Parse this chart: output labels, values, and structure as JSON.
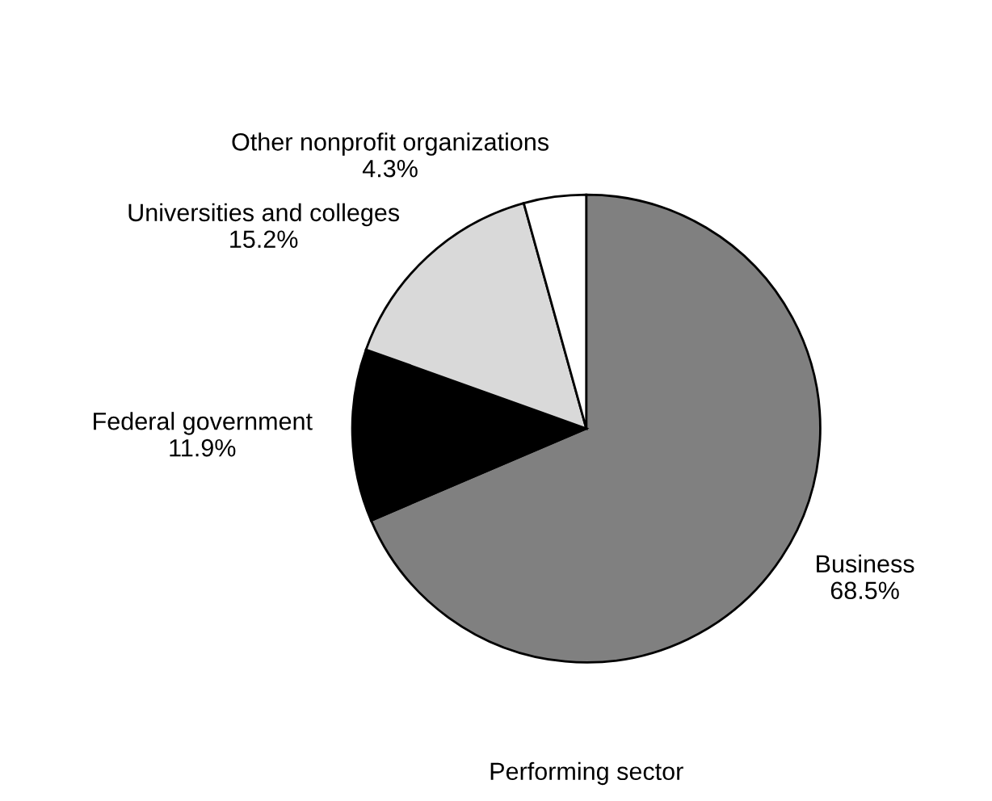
{
  "chart_data": {
    "type": "pie",
    "title": "Performing sector",
    "categories": [
      "Business",
      "Federal government",
      "Universities and colleges",
      "Other nonprofit organizations"
    ],
    "values": [
      68.5,
      11.9,
      15.2,
      4.3
    ],
    "value_labels": [
      "68.5%",
      "11.9%",
      "15.2%",
      "4.3%"
    ],
    "colors": [
      "#808080",
      "#000000",
      "#d9d9d9",
      "#ffffff"
    ]
  }
}
